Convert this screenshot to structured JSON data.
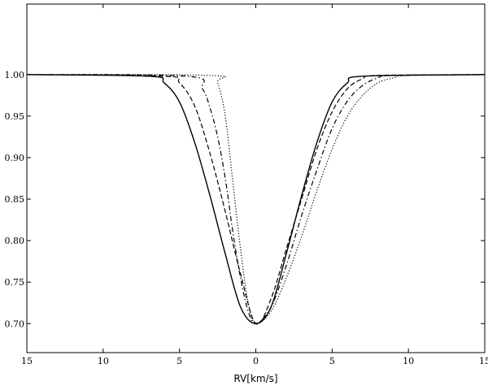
{
  "chart_data": {
    "type": "line",
    "title": "",
    "xlabel": "RV[km/s]",
    "ylabel": "",
    "xlim": [
      -15,
      15
    ],
    "ylim": [
      0.665,
      1.085
    ],
    "grid": false,
    "legend": "none",
    "x_ticks": [
      -15,
      -10,
      -5,
      0,
      5,
      10,
      15
    ],
    "x_tick_labels": [
      "15",
      "10",
      "5",
      "0",
      "5",
      "10",
      "15"
    ],
    "y_ticks": [
      0.7,
      0.75,
      0.8,
      0.85,
      0.9,
      0.95,
      1.0
    ],
    "y_tick_labels": [
      "0.70",
      "0.75",
      "0.80",
      "0.85",
      "0.90",
      "0.95",
      "1.00"
    ],
    "series": [
      {
        "style": "solid",
        "color": "#000000",
        "x": [
          -15,
          -7,
          -6,
          -5,
          -4,
          -3,
          -2,
          -1,
          0,
          1,
          2,
          3,
          4,
          5,
          6,
          7,
          15
        ],
        "y": [
          1.0,
          0.998,
          0.99,
          0.967,
          0.918,
          0.854,
          0.784,
          0.72,
          0.7,
          0.72,
          0.784,
          0.854,
          0.918,
          0.967,
          0.99,
          0.998,
          1.0
        ]
      },
      {
        "style": "dashdot",
        "color": "#000000",
        "x": [
          -15,
          -4.5,
          -3.5,
          -3,
          -2.5,
          -2,
          -1.5,
          -1,
          -0.5,
          0,
          1,
          2,
          3,
          4,
          5,
          6,
          7,
          8,
          9,
          15
        ],
        "y": [
          1.0,
          0.998,
          0.983,
          0.96,
          0.925,
          0.875,
          0.81,
          0.755,
          0.715,
          0.7,
          0.72,
          0.77,
          0.83,
          0.885,
          0.935,
          0.968,
          0.987,
          0.996,
          0.999,
          1.0
        ]
      },
      {
        "style": "dashed",
        "color": "#000000",
        "x": [
          -15,
          -6,
          -5,
          -4,
          -3,
          -2,
          -1,
          0,
          1,
          2,
          3,
          4,
          5,
          6,
          7,
          8,
          15
        ],
        "y": [
          1.0,
          0.998,
          0.99,
          0.962,
          0.905,
          0.835,
          0.76,
          0.7,
          0.73,
          0.79,
          0.85,
          0.91,
          0.955,
          0.983,
          0.995,
          0.999,
          1.0
        ]
      },
      {
        "style": "dotted",
        "color": "#000000",
        "x": [
          -15,
          -3,
          -2.5,
          -2,
          -1.5,
          -1,
          -0.5,
          0,
          1,
          2,
          3,
          4,
          5,
          6,
          7,
          8,
          9,
          10,
          15
        ],
        "y": [
          1.0,
          0.999,
          0.99,
          0.95,
          0.87,
          0.79,
          0.725,
          0.7,
          0.715,
          0.755,
          0.805,
          0.86,
          0.91,
          0.95,
          0.975,
          0.99,
          0.996,
          0.999,
          1.0
        ]
      }
    ]
  }
}
